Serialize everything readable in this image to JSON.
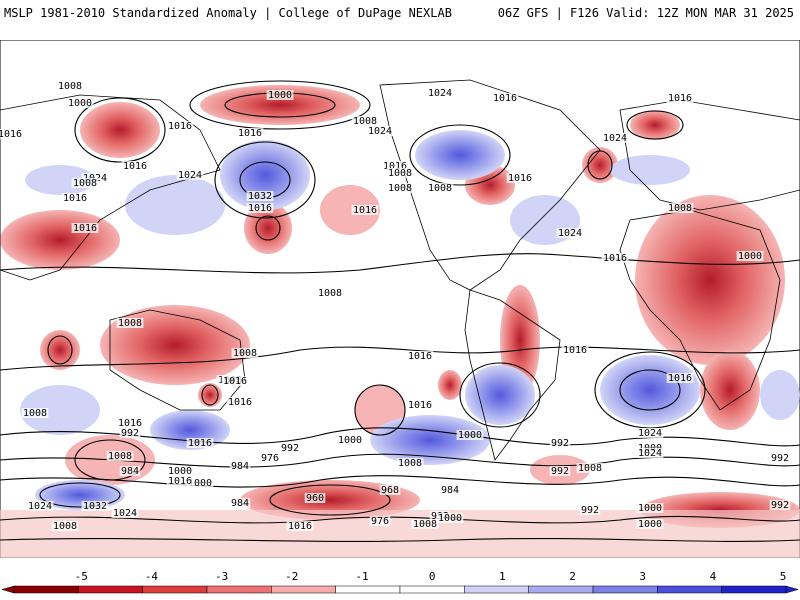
{
  "header": {
    "title_left": "MSLP 1981-2010 Standardized Anomaly | College of DuPage NEXLAB",
    "title_right": "06Z GFS | F126 Valid: 12Z MON MAR 31 2025"
  },
  "colorbar": {
    "ticks": [
      "-5",
      "-4",
      "-3",
      "-2",
      "-1",
      "0",
      "1",
      "2",
      "3",
      "4",
      "5"
    ],
    "colors": [
      "#8b0000",
      "#c8141e",
      "#e03c3c",
      "#ee7070",
      "#f6aaaa",
      "#ffffff",
      "#ffffff",
      "#cfd2f6",
      "#a7acef",
      "#7a80e6",
      "#4a50dc",
      "#1e22c8"
    ]
  },
  "map": {
    "contour_labels": [
      "1008",
      "1000",
      "1000",
      "1016",
      "1016",
      "1024",
      "1016",
      "1024",
      "1008",
      "1016",
      "1008",
      "1016",
      "1024",
      "1016",
      "1016",
      "1024",
      "1032",
      "1016",
      "1024",
      "1008",
      "1008",
      "1016",
      "1008",
      "1016",
      "1016",
      "1016",
      "1000",
      "1008",
      "1008",
      "1008",
      "1008",
      "1008",
      "1016",
      "1016",
      "1024",
      "1016",
      "1016",
      "1016",
      "1016",
      "1016",
      "1024",
      "1000",
      "1024",
      "1008",
      "1016",
      "992",
      "1016",
      "1008",
      "1000",
      "1000",
      "1008",
      "984",
      "992",
      "976",
      "984",
      "1000",
      "1000",
      "1016",
      "984",
      "992",
      "992",
      "1024",
      "1032",
      "1024",
      "1008",
      "960",
      "968",
      "976",
      "984",
      "992",
      "1000",
      "992",
      "1000",
      "1016",
      "992",
      "1008",
      "1000",
      "992",
      "1008"
    ],
    "anomaly_regions": [
      {
        "sign": "positive",
        "level": 3
      },
      {
        "sign": "negative",
        "level": 4
      }
    ]
  }
}
